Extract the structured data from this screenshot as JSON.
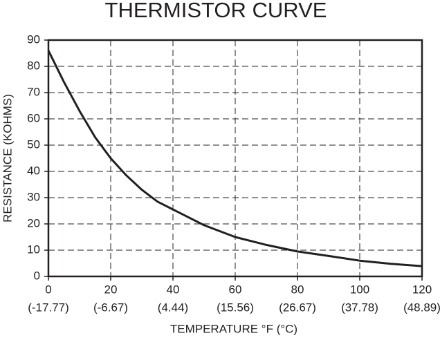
{
  "chart_data": {
    "type": "line",
    "title": "THERMISTOR CURVE",
    "x_label": "TEMPERATURE °F (°C)",
    "y_label": "RESISTANCE (KOHMS)",
    "x": [
      0,
      5,
      10,
      15,
      20,
      25,
      30,
      35,
      40,
      50,
      60,
      70,
      80,
      90,
      100,
      110,
      120
    ],
    "series": [
      {
        "name": "Resistance",
        "color": "#231f20",
        "values": [
          86,
          74,
          63,
          53,
          45,
          38.5,
          33,
          28.5,
          25.5,
          19.5,
          15,
          12,
          9.5,
          7.8,
          6,
          4.8,
          3.9
        ]
      }
    ],
    "xlim": [
      0,
      120
    ],
    "xticks": [
      0,
      20,
      40,
      60,
      80,
      100,
      120
    ],
    "xtick_celsius": [
      "(-17.77)",
      "(-6.67)",
      "(4.44)",
      "(15.56)",
      "(26.67)",
      "(37.78)",
      "(48.89)"
    ],
    "ylim": [
      0,
      90
    ],
    "yticks": [
      0,
      10,
      20,
      30,
      40,
      50,
      60,
      70,
      80,
      90
    ],
    "grid": true
  }
}
